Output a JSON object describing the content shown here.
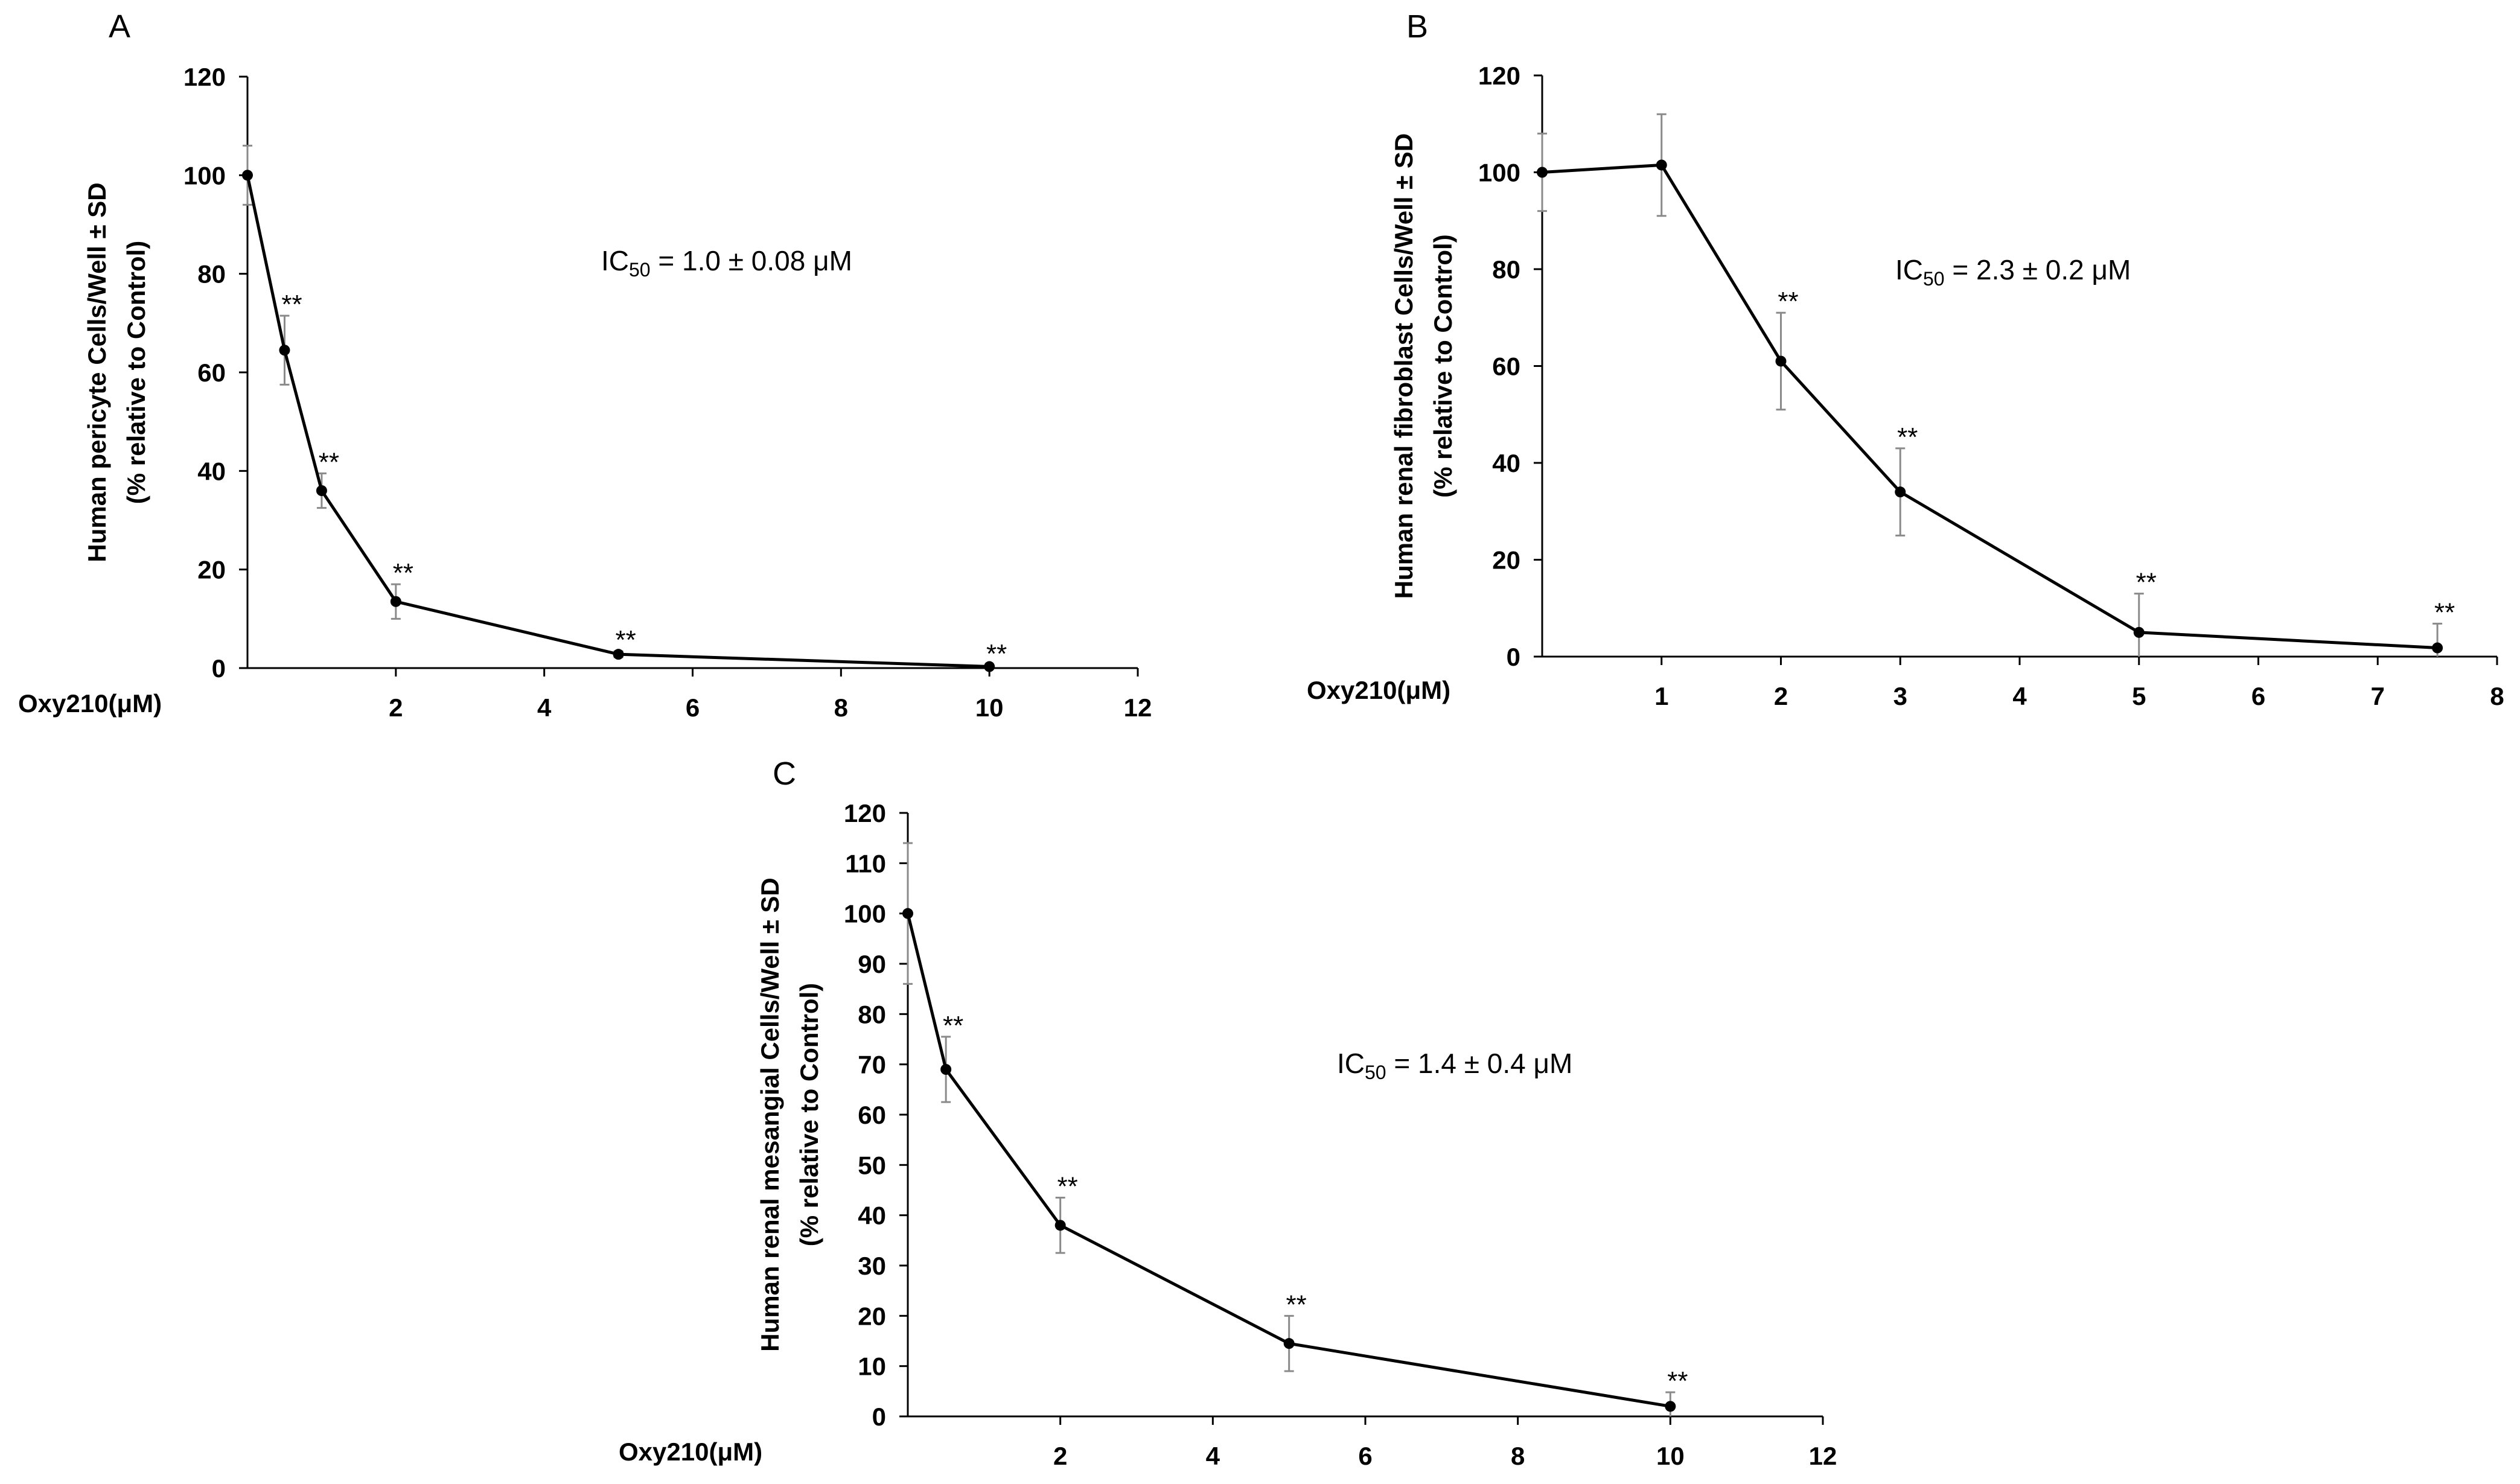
{
  "chart_data": [
    {
      "type": "line",
      "panel": "A",
      "title": "",
      "xlabel": "Oxy210(μM)",
      "ylabel": [
        "Human pericyte Cells/Well ± SD",
        "(% relative to Control)"
      ],
      "xlim": [
        0,
        12
      ],
      "ylim": [
        0,
        120
      ],
      "x_ticks": [
        2,
        4,
        6,
        8,
        10,
        12
      ],
      "y_ticks": [
        0,
        20,
        40,
        60,
        80,
        100,
        120
      ],
      "x": [
        0,
        0.5,
        1,
        2,
        5,
        10
      ],
      "values": [
        100,
        64.5,
        36,
        13.5,
        2.8,
        0.3
      ],
      "errors": [
        6,
        7,
        3.5,
        3.5,
        0.6,
        0.3
      ],
      "significance": [
        "",
        "**",
        "**",
        "**",
        "**",
        "**"
      ],
      "annotation": {
        "ic": "IC",
        "sub": "50",
        "rest": " = 1.0 ± 0.08 μM"
      },
      "grid": false
    },
    {
      "type": "line",
      "panel": "B",
      "title": "",
      "xlabel": "Oxy210(μM)",
      "ylabel": [
        "Human renal fibroblast Cells/Well ± SD",
        "(% relative to Control)"
      ],
      "xlim": [
        0,
        8
      ],
      "ylim": [
        0,
        120
      ],
      "x_ticks": [
        1,
        2,
        3,
        4,
        5,
        6,
        7,
        8
      ],
      "y_ticks": [
        0,
        20,
        40,
        60,
        80,
        100,
        120
      ],
      "x": [
        0,
        1,
        2,
        3,
        5,
        7.5
      ],
      "values": [
        100,
        101.5,
        61,
        34,
        5,
        1.8
      ],
      "errors": [
        8,
        10.5,
        10,
        9,
        8,
        5
      ],
      "significance": [
        "",
        "",
        "**",
        "**",
        "**",
        "**"
      ],
      "annotation": {
        "ic": "IC",
        "sub": "50",
        "rest": " = 2.3 ± 0.2 μM"
      },
      "grid": false
    },
    {
      "type": "line",
      "panel": "C",
      "title": "",
      "xlabel": "Oxy210(μM)",
      "ylabel": [
        "Human renal mesangial Cells/Well ± SD",
        "(% relative to Control)"
      ],
      "xlim": [
        0,
        12
      ],
      "ylim": [
        0,
        120
      ],
      "x_ticks": [
        2,
        4,
        6,
        8,
        10,
        12
      ],
      "y_ticks": [
        0,
        10,
        20,
        30,
        40,
        50,
        60,
        70,
        80,
        90,
        100,
        110,
        120
      ],
      "x": [
        0,
        0.5,
        2,
        5,
        10
      ],
      "values": [
        100,
        69,
        38,
        14.5,
        2
      ],
      "errors": [
        14,
        6.5,
        5.5,
        5.5,
        2.8
      ],
      "significance": [
        "",
        "**",
        "**",
        "**",
        "**"
      ],
      "annotation": {
        "ic": "IC",
        "sub": "50",
        "rest": " = 1.4 ± 0.4 μM"
      },
      "grid": false
    }
  ]
}
